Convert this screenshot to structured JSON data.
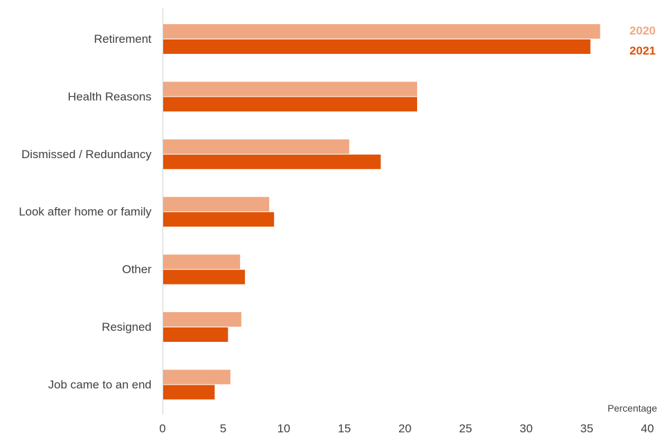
{
  "chart_data": {
    "type": "bar",
    "orientation": "horizontal",
    "categories": [
      "Retirement",
      "Health Reasons",
      "Dismissed / Redundancy",
      "Look after home or family",
      "Other",
      "Resigned",
      "Job came to an end"
    ],
    "series": [
      {
        "name": "2020",
        "color": "#f0a882",
        "values": [
          36.1,
          21.0,
          15.4,
          8.8,
          6.4,
          6.5,
          5.6
        ]
      },
      {
        "name": "2021",
        "color": "#e05206",
        "values": [
          35.3,
          21.0,
          18.0,
          9.2,
          6.8,
          5.4,
          4.3
        ]
      }
    ],
    "xlabel": "Percentage",
    "xlim": [
      0,
      40
    ],
    "xticks": [
      "0",
      "5",
      "10",
      "15",
      "20",
      "25",
      "30",
      "35",
      "40"
    ],
    "grid": false,
    "legend": "top-right"
  }
}
